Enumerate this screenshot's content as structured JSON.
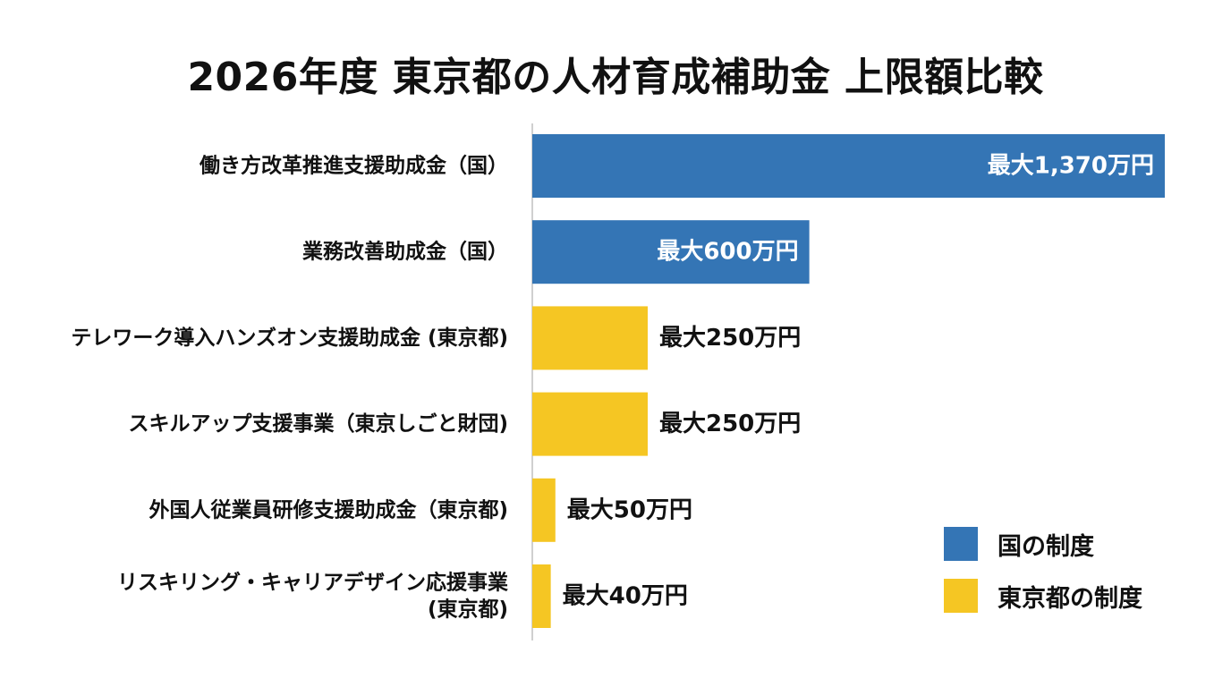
{
  "chart_data": {
    "type": "bar",
    "orientation": "horizontal",
    "title": "2026年度 東京都の人材育成補助金 上限額比較",
    "unit": "万円",
    "xlim": [
      0,
      1370
    ],
    "grid": false,
    "legend_position": "bottom-right",
    "categories": [
      [
        "働き方改革推進支援助成金（国）"
      ],
      [
        "業務改善助成金（国）"
      ],
      [
        "テレワーク導入ハンズオン支援助成金 (東京都)"
      ],
      [
        "スキルアップ支援事業（東京しごと財団)"
      ],
      [
        "外国人従業員研修支援助成金（東京都)"
      ],
      [
        "リスキリング・キャリアデザイン応援事業",
        "(東京都)"
      ]
    ],
    "values": [
      1370,
      600,
      250,
      250,
      50,
      40
    ],
    "value_labels": [
      "最大1,370万円",
      "最大600万円",
      "最大250万円",
      "最大250万円",
      "最大50万円",
      "最大40万円"
    ],
    "groups": [
      "national",
      "national",
      "tokyo",
      "tokyo",
      "tokyo",
      "tokyo"
    ],
    "legend": [
      {
        "key": "national",
        "label": "国の制度",
        "color": "#3475b5"
      },
      {
        "key": "tokyo",
        "label": "東京都の制度",
        "color": "#f5c623"
      }
    ]
  }
}
